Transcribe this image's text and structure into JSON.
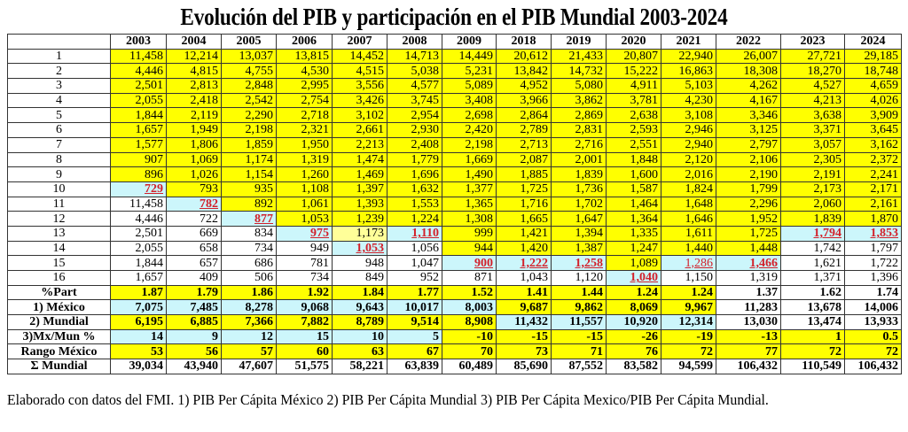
{
  "title": "Evolución del PIB y participación en el PIB Mundial 2003-2024",
  "colors": {
    "yellow": "#ffff00",
    "cyan": "#ccf6fb",
    "pale_yellow": "#ffff99",
    "red": "#d2202a"
  },
  "legend_codes": {
    "y": "yellow",
    "c": "cyan",
    "w": "white",
    "p": "pale yellow",
    "R": "cyan with red bold underlined",
    "L": "cyan with red underlined"
  },
  "years": [
    "2003",
    "2004",
    "2005",
    "2006",
    "2007",
    "2008",
    "2009",
    "2018",
    "2019",
    "2020",
    "2021",
    "2022",
    "2023",
    "2024"
  ],
  "rows": [
    {
      "label": "1",
      "bold": false,
      "styles": "yyyyyyyyyyyyyy",
      "values": [
        "11,458",
        "12,214",
        "13,037",
        "13,815",
        "14,452",
        "14,713",
        "14,449",
        "20,612",
        "21,433",
        "20,807",
        "22,940",
        "26,007",
        "27,721",
        "29,185"
      ]
    },
    {
      "label": "2",
      "bold": false,
      "styles": "yyyyyyyyyyyyyy",
      "values": [
        "4,446",
        "4,815",
        "4,755",
        "4,530",
        "4,515",
        "5,038",
        "5,231",
        "13,842",
        "14,732",
        "15,222",
        "16,863",
        "18,308",
        "18,270",
        "18,748"
      ]
    },
    {
      "label": "3",
      "bold": false,
      "styles": "yyyyyyyyyyyyyy",
      "values": [
        "2,501",
        "2,813",
        "2,848",
        "2,995",
        "3,556",
        "4,577",
        "5,089",
        "4,952",
        "5,080",
        "4,911",
        "5,103",
        "4,262",
        "4,527",
        "4,659"
      ]
    },
    {
      "label": "4",
      "bold": false,
      "styles": "yyyyyyyyyyyyyy",
      "values": [
        "2,055",
        "2,418",
        "2,542",
        "2,754",
        "3,426",
        "3,745",
        "3,408",
        "3,966",
        "3,862",
        "3,781",
        "4,230",
        "4,167",
        "4,213",
        "4,026"
      ]
    },
    {
      "label": "5",
      "bold": false,
      "styles": "yyyyyyyyyyyyyy",
      "values": [
        "1,844",
        "2,119",
        "2,290",
        "2,718",
        "3,102",
        "2,954",
        "2,698",
        "2,864",
        "2,869",
        "2,638",
        "3,108",
        "3,346",
        "3,638",
        "3,909"
      ]
    },
    {
      "label": "6",
      "bold": false,
      "styles": "yyyyyyyyyyyyyy",
      "values": [
        "1,657",
        "1,949",
        "2,198",
        "2,321",
        "2,661",
        "2,930",
        "2,420",
        "2,789",
        "2,831",
        "2,593",
        "2,946",
        "3,125",
        "3,371",
        "3,645"
      ]
    },
    {
      "label": "7",
      "bold": false,
      "styles": "yyyyyyyyyyyyyy",
      "values": [
        "1,577",
        "1,806",
        "1,859",
        "1,950",
        "2,213",
        "2,408",
        "2,198",
        "2,713",
        "2,716",
        "2,551",
        "2,940",
        "2,797",
        "3,057",
        "3,162"
      ]
    },
    {
      "label": "8",
      "bold": false,
      "styles": "yyyyyyyyyyyyyy",
      "values": [
        "907",
        "1,069",
        "1,174",
        "1,319",
        "1,474",
        "1,779",
        "1,669",
        "2,087",
        "2,001",
        "1,848",
        "2,120",
        "2,106",
        "2,305",
        "2,372"
      ]
    },
    {
      "label": "9",
      "bold": false,
      "styles": "yyyyyyyyyyyyyy",
      "values": [
        "896",
        "1,026",
        "1,154",
        "1,260",
        "1,469",
        "1,696",
        "1,490",
        "1,885",
        "1,839",
        "1,600",
        "2,016",
        "2,190",
        "2,191",
        "2,241"
      ]
    },
    {
      "label": "10",
      "bold": false,
      "styles": "Ryyyyyyyyyyyyy",
      "values": [
        "729",
        "793",
        "935",
        "1,108",
        "1,397",
        "1,632",
        "1,377",
        "1,725",
        "1,736",
        "1,587",
        "1,824",
        "1,799",
        "2,173",
        "2,171"
      ]
    },
    {
      "label": "11",
      "bold": false,
      "styles": "wRyyyyyyyyyyyy",
      "values": [
        "11,458",
        "782",
        "892",
        "1,061",
        "1,393",
        "1,553",
        "1,365",
        "1,716",
        "1,702",
        "1,464",
        "1,648",
        "2,296",
        "2,060",
        "2,161"
      ]
    },
    {
      "label": "12",
      "bold": false,
      "styles": "wwRyyyyyyyyyyy",
      "values": [
        "4,446",
        "722",
        "877",
        "1,053",
        "1,239",
        "1,224",
        "1,308",
        "1,665",
        "1,647",
        "1,364",
        "1,646",
        "1,952",
        "1,839",
        "1,870"
      ]
    },
    {
      "label": "13",
      "bold": false,
      "styles": "wwwRpRyyyyyyRR",
      "values": [
        "2,501",
        "669",
        "834",
        "975",
        "1,173",
        "1,110",
        "999",
        "1,421",
        "1,394",
        "1,335",
        "1,611",
        "1,725",
        "1,794",
        "1,853"
      ]
    },
    {
      "label": "14",
      "bold": false,
      "styles": "wwwwRwyyyyyyww",
      "values": [
        "2,055",
        "658",
        "734",
        "949",
        "1,053",
        "1,056",
        "944",
        "1,420",
        "1,387",
        "1,247",
        "1,440",
        "1,448",
        "1,742",
        "1,797"
      ]
    },
    {
      "label": "15",
      "bold": false,
      "styles": "wwwwwwRRRyLRww",
      "values": [
        "1,844",
        "657",
        "686",
        "781",
        "948",
        "1,047",
        "900",
        "1,222",
        "1,258",
        "1,089",
        "1,286",
        "1,466",
        "1,621",
        "1,722"
      ]
    },
    {
      "label": "16",
      "bold": false,
      "styles": "wwwwwwwwwRwwww",
      "values": [
        "1,657",
        "409",
        "506",
        "734",
        "849",
        "952",
        "871",
        "1,043",
        "1,120",
        "1,040",
        "1,150",
        "1,319",
        "1,371",
        "1,396"
      ]
    },
    {
      "label": "%Part",
      "bold": true,
      "styles": "yyyyyyyyyyywww",
      "values": [
        "1.87",
        "1.79",
        "1.86",
        "1.92",
        "1.84",
        "1.77",
        "1.52",
        "1.41",
        "1.44",
        "1.24",
        "1.24",
        "1.37",
        "1.62",
        "1.74"
      ]
    },
    {
      "label": "1)  México",
      "bold": true,
      "styles": "cccccccyyyywww",
      "values": [
        "7,075",
        "7,485",
        "8,278",
        "9,068",
        "9,643",
        "10,017",
        "8,003",
        "9,687",
        "9,862",
        "8,069",
        "9,967",
        "11,283",
        "13,678",
        "14,006"
      ]
    },
    {
      "label": "2) Mundial",
      "bold": true,
      "styles": "yyyyyyyccccwww",
      "values": [
        "6,195",
        "6,885",
        "7,366",
        "7,882",
        "8,789",
        "9,514",
        "8,908",
        "11,432",
        "11,557",
        "10,920",
        "12,314",
        "13,030",
        "13,474",
        "13,933"
      ]
    },
    {
      "label": "3)Mx/Mun %",
      "bold": true,
      "styles": "ccccccyyyyyyyy",
      "values": [
        "14",
        "9",
        "12",
        "15",
        "10",
        "5",
        "-10",
        "-15",
        "-15",
        "-26",
        "-19",
        "-13",
        "1",
        "0.5"
      ]
    },
    {
      "label": "Rango México",
      "bold": true,
      "styles": "yyyyyyyyyyyyyy",
      "values": [
        "53",
        "56",
        "57",
        "60",
        "63",
        "67",
        "70",
        "73",
        "71",
        "76",
        "72",
        "77",
        "72",
        "72"
      ]
    },
    {
      "label": "Σ Mundial",
      "bold": true,
      "styles": "wwwwwwwwwwwwww",
      "values": [
        "39,034",
        "43,940",
        "47,607",
        "51,575",
        "58,221",
        "63,839",
        "60,489",
        "85,690",
        "87,552",
        "83,582",
        "94,599",
        "106,432",
        "110,549",
        "106,432"
      ]
    }
  ],
  "footnote": "Elaborado con datos del FMI. 1) PIB Per Cápita México 2) PIB Per Cápita Mundial 3) PIB Per Cápita Mexico/PIB Per Cápita Mundial."
}
